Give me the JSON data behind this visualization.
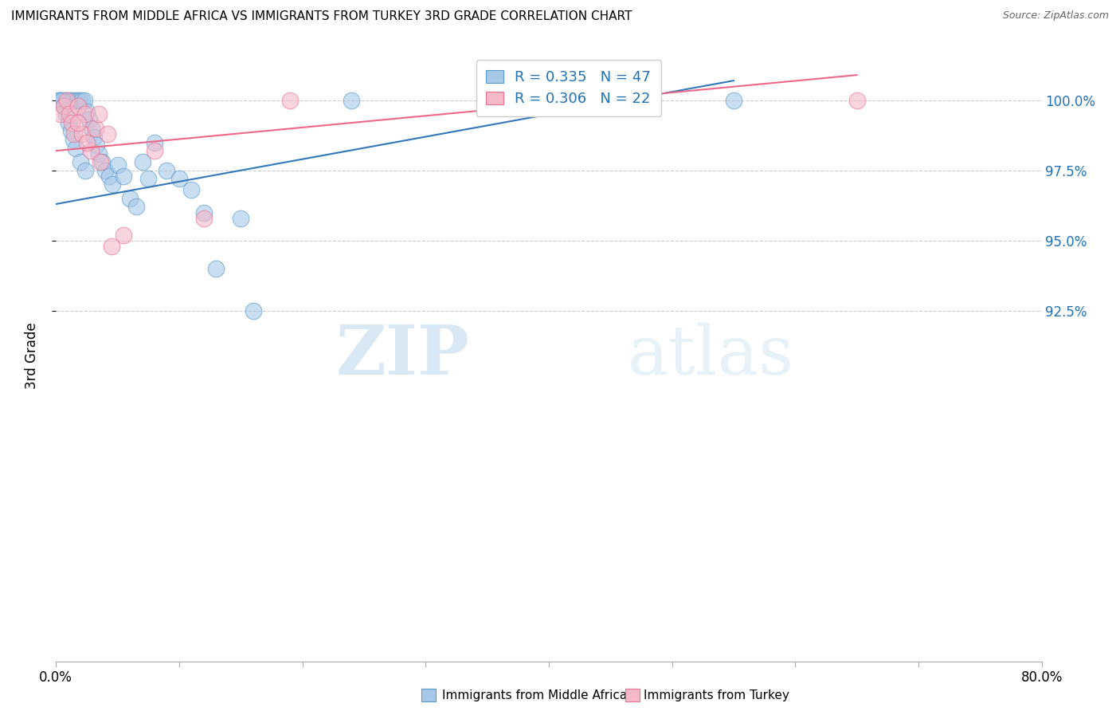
{
  "title": "IMMIGRANTS FROM MIDDLE AFRICA VS IMMIGRANTS FROM TURKEY 3RD GRADE CORRELATION CHART",
  "source": "Source: ZipAtlas.com",
  "ylabel": "3rd Grade",
  "legend_blue_r": "R = 0.335",
  "legend_blue_n": "N = 47",
  "legend_pink_r": "R = 0.306",
  "legend_pink_n": "N = 22",
  "legend_blue_label": "Immigrants from Middle Africa",
  "legend_pink_label": "Immigrants from Turkey",
  "blue_color": "#a8c8e8",
  "pink_color": "#f4b8c8",
  "blue_edge_color": "#5599cc",
  "pink_edge_color": "#e87090",
  "blue_line_color": "#3377bb",
  "pink_line_color": "#ee6688",
  "watermark_zip": "ZIP",
  "watermark_atlas": "atlas",
  "xlim": [
    0.0,
    0.8
  ],
  "ylim": [
    80.0,
    101.8
  ],
  "yticks": [
    92.5,
    95.0,
    97.5,
    100.0
  ],
  "xtick_labels_left": "0.0%",
  "xtick_labels_right": "80.0%",
  "blue_scatter_x": [
    0.004,
    0.007,
    0.009,
    0.011,
    0.013,
    0.015,
    0.017,
    0.019,
    0.021,
    0.023,
    0.025,
    0.027,
    0.029,
    0.031,
    0.033,
    0.035,
    0.037,
    0.04,
    0.043,
    0.046,
    0.05,
    0.055,
    0.06,
    0.065,
    0.07,
    0.075,
    0.08,
    0.09,
    0.1,
    0.11,
    0.12,
    0.13,
    0.15,
    0.002,
    0.003,
    0.005,
    0.006,
    0.008,
    0.01,
    0.012,
    0.014,
    0.016,
    0.02,
    0.024,
    0.16,
    0.24,
    0.55
  ],
  "blue_scatter_y": [
    100.0,
    100.0,
    100.0,
    100.0,
    100.0,
    100.0,
    100.0,
    100.0,
    100.0,
    100.0,
    99.6,
    99.3,
    99.0,
    98.7,
    98.4,
    98.1,
    97.8,
    97.5,
    97.3,
    97.0,
    97.7,
    97.3,
    96.5,
    96.2,
    97.8,
    97.2,
    98.5,
    97.5,
    97.2,
    96.8,
    96.0,
    94.0,
    95.8,
    100.0,
    100.0,
    100.0,
    99.8,
    99.5,
    99.2,
    98.9,
    98.6,
    98.3,
    97.8,
    97.5,
    92.5,
    100.0,
    100.0
  ],
  "pink_scatter_x": [
    0.004,
    0.006,
    0.009,
    0.011,
    0.013,
    0.015,
    0.018,
    0.021,
    0.024,
    0.028,
    0.032,
    0.036,
    0.042,
    0.018,
    0.025,
    0.035,
    0.055,
    0.08,
    0.12,
    0.19,
    0.045,
    0.65
  ],
  "pink_scatter_y": [
    99.5,
    99.8,
    100.0,
    99.5,
    99.2,
    98.8,
    99.8,
    98.8,
    99.5,
    98.2,
    99.0,
    97.8,
    98.8,
    99.2,
    98.5,
    99.5,
    95.2,
    98.2,
    95.8,
    100.0,
    94.8,
    100.0
  ],
  "blue_line_x": [
    0.0,
    0.55
  ],
  "blue_line_y": [
    96.3,
    100.7
  ],
  "pink_line_x": [
    0.0,
    0.65
  ],
  "pink_line_y": [
    98.2,
    100.9
  ]
}
